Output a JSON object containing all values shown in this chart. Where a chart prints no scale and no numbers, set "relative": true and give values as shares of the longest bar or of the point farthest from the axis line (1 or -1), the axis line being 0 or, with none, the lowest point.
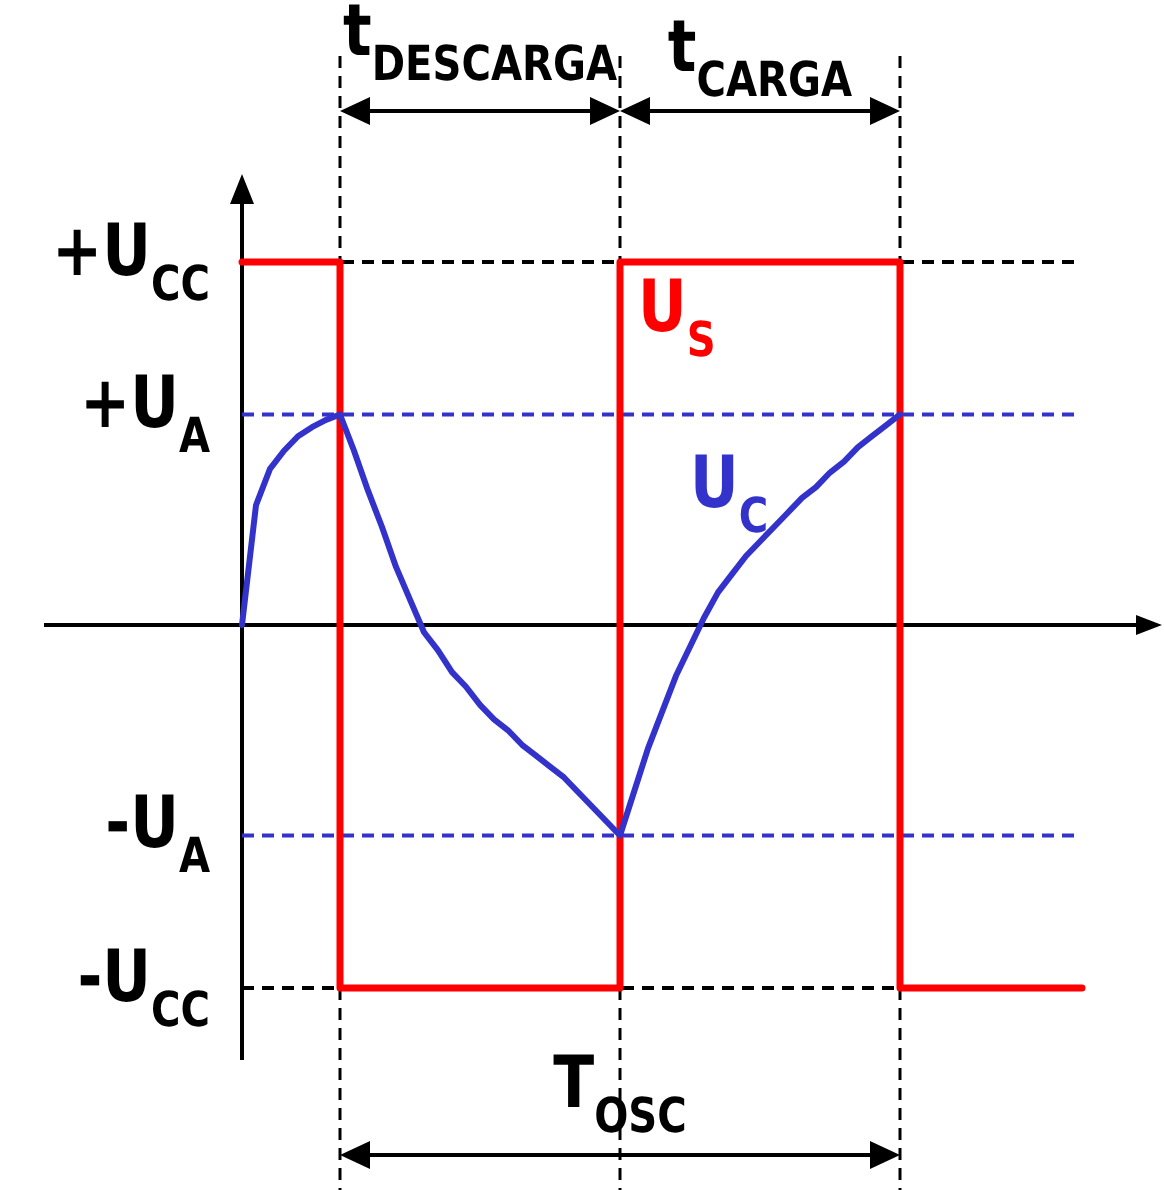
{
  "chart_data": {
    "type": "line",
    "relative": true,
    "marker": "none",
    "line_style": "solid",
    "tick_labels": false,
    "categories": [
      null,
      null,
      null,
      null,
      null,
      null,
      null,
      null,
      null,
      null,
      null,
      null,
      null,
      null,
      null,
      null,
      null,
      null,
      null,
      null,
      null,
      null,
      null,
      null,
      null,
      null,
      null,
      null,
      null,
      null,
      null,
      null,
      null,
      null,
      null,
      null,
      null,
      null,
      null,
      null,
      null,
      null,
      null,
      null,
      null,
      null,
      null,
      null,
      null,
      null,
      null,
      null,
      null,
      null,
      null,
      null,
      null,
      null,
      null,
      null,
      null
    ],
    "series": [
      {
        "name": "U$_{S}$",
        "type": "step",
        "color": "#ff0000",
        "values": [
          1,
          1,
          1,
          1,
          1,
          1,
          1,
          -1,
          -1,
          -1,
          -1,
          -1,
          -1,
          -1,
          -1,
          -1,
          -1,
          -1,
          -1,
          -1,
          -1,
          -1,
          -1,
          -1,
          -1,
          -1,
          -1,
          1,
          1,
          1,
          1,
          1,
          1,
          1,
          1,
          1,
          1,
          1,
          1,
          1,
          1,
          1,
          1,
          1,
          1,
          1,
          1,
          -1,
          -1,
          -1,
          -1,
          -1,
          -1,
          -1,
          -1,
          -1,
          -1,
          -1,
          -1,
          -1,
          -1
        ]
      },
      {
        "name": "U$_{C}$",
        "color": "#3333cc",
        "values": [
          0,
          0.33,
          0.43,
          0.48,
          0.52,
          0.545,
          0.565,
          0.58,
          0.48,
          0.37,
          0.27,
          0.16,
          0.07,
          -0.02,
          -0.07,
          -0.13,
          -0.17,
          -0.22,
          -0.26,
          -0.29,
          -0.33,
          -0.36,
          -0.39,
          -0.42,
          -0.46,
          -0.5,
          -0.54,
          -0.58,
          -0.46,
          -0.34,
          -0.24,
          -0.14,
          -0.06,
          0.02,
          0.09,
          0.14,
          0.19,
          0.23,
          0.27,
          0.31,
          0.35,
          0.38,
          0.42,
          0.45,
          0.49,
          0.52,
          0.55,
          0.58,
          null,
          null,
          null,
          null,
          null,
          null,
          null,
          null,
          null,
          null,
          null,
          null,
          null
        ]
      }
    ],
    "ref_lines": [
      {
        "axis": "y",
        "value": 1,
        "label": "+U$_{CC}$",
        "color": "#000000",
        "line_style": "dashed"
      },
      {
        "axis": "y",
        "value": 0.58,
        "label": "+U$_{A}$",
        "color": "#3333cc",
        "line_style": "dashed"
      },
      {
        "axis": "y",
        "value": -0.58,
        "label": "-U$_{A}$",
        "color": "#3333cc",
        "line_style": "dashed"
      },
      {
        "axis": "y",
        "value": -1,
        "label": "-U$_{CC}$",
        "color": "#000000",
        "line_style": "dashed"
      }
    ],
    "annotations": [
      "t$_{DESCARGA}$",
      "t$_{CARGA}$",
      "T$_{OSC}$"
    ]
  }
}
